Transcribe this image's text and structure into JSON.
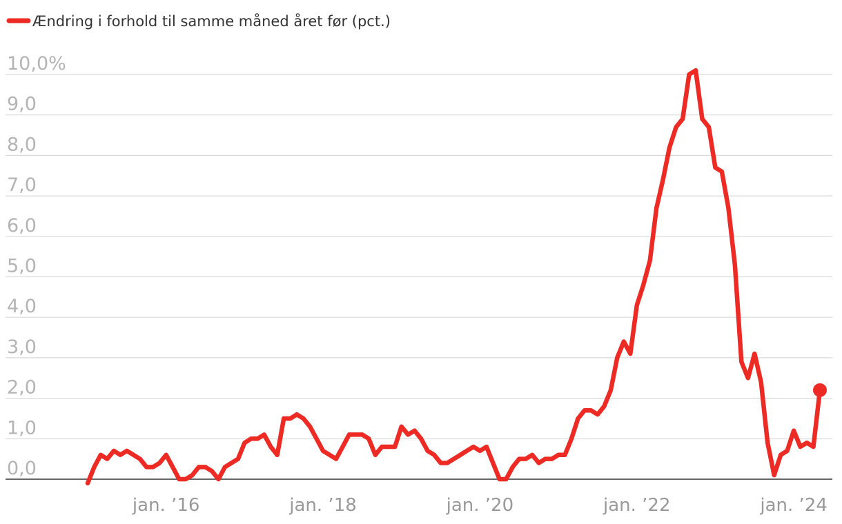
{
  "colors": {
    "series": "#ee2a24",
    "grid": "#d9d9d9",
    "axis": "#333333",
    "tick_text": "#999999",
    "legend_text": "#333333"
  },
  "chart_data": {
    "type": "line",
    "legend_position": "top-left",
    "grid": true,
    "series": [
      {
        "name": "Ændring i forhold til samme måned året før (pct.)",
        "marker_on_last_point": true,
        "points": [
          [
            "2015-01",
            -0.1
          ],
          [
            "2015-02",
            0.3
          ],
          [
            "2015-03",
            0.6
          ],
          [
            "2015-04",
            0.5
          ],
          [
            "2015-05",
            0.7
          ],
          [
            "2015-06",
            0.6
          ],
          [
            "2015-07",
            0.7
          ],
          [
            "2015-08",
            0.6
          ],
          [
            "2015-09",
            0.5
          ],
          [
            "2015-10",
            0.3
          ],
          [
            "2015-11",
            0.3
          ],
          [
            "2015-12",
            0.4
          ],
          [
            "2016-01",
            0.6
          ],
          [
            "2016-02",
            0.3
          ],
          [
            "2016-03",
            0.0
          ],
          [
            "2016-04",
            0.0
          ],
          [
            "2016-05",
            0.1
          ],
          [
            "2016-06",
            0.3
          ],
          [
            "2016-07",
            0.3
          ],
          [
            "2016-08",
            0.2
          ],
          [
            "2016-09",
            0.0
          ],
          [
            "2016-10",
            0.3
          ],
          [
            "2016-11",
            0.4
          ],
          [
            "2016-12",
            0.5
          ],
          [
            "2017-01",
            0.9
          ],
          [
            "2017-02",
            1.0
          ],
          [
            "2017-03",
            1.0
          ],
          [
            "2017-04",
            1.1
          ],
          [
            "2017-05",
            0.8
          ],
          [
            "2017-06",
            0.6
          ],
          [
            "2017-07",
            1.5
          ],
          [
            "2017-08",
            1.5
          ],
          [
            "2017-09",
            1.6
          ],
          [
            "2017-10",
            1.5
          ],
          [
            "2017-11",
            1.3
          ],
          [
            "2017-12",
            1.0
          ],
          [
            "2018-01",
            0.7
          ],
          [
            "2018-02",
            0.6
          ],
          [
            "2018-03",
            0.5
          ],
          [
            "2018-04",
            0.8
          ],
          [
            "2018-05",
            1.1
          ],
          [
            "2018-06",
            1.1
          ],
          [
            "2018-07",
            1.1
          ],
          [
            "2018-08",
            1.0
          ],
          [
            "2018-09",
            0.6
          ],
          [
            "2018-10",
            0.8
          ],
          [
            "2018-11",
            0.8
          ],
          [
            "2018-12",
            0.8
          ],
          [
            "2019-01",
            1.3
          ],
          [
            "2019-02",
            1.1
          ],
          [
            "2019-03",
            1.2
          ],
          [
            "2019-04",
            1.0
          ],
          [
            "2019-05",
            0.7
          ],
          [
            "2019-06",
            0.6
          ],
          [
            "2019-07",
            0.4
          ],
          [
            "2019-08",
            0.4
          ],
          [
            "2019-09",
            0.5
          ],
          [
            "2019-10",
            0.6
          ],
          [
            "2019-11",
            0.7
          ],
          [
            "2019-12",
            0.8
          ],
          [
            "2020-01",
            0.7
          ],
          [
            "2020-02",
            0.8
          ],
          [
            "2020-03",
            0.4
          ],
          [
            "2020-04",
            0.0
          ],
          [
            "2020-05",
            0.0
          ],
          [
            "2020-06",
            0.3
          ],
          [
            "2020-07",
            0.5
          ],
          [
            "2020-08",
            0.5
          ],
          [
            "2020-09",
            0.6
          ],
          [
            "2020-10",
            0.4
          ],
          [
            "2020-11",
            0.5
          ],
          [
            "2020-12",
            0.5
          ],
          [
            "2021-01",
            0.6
          ],
          [
            "2021-02",
            0.6
          ],
          [
            "2021-03",
            1.0
          ],
          [
            "2021-04",
            1.5
          ],
          [
            "2021-05",
            1.7
          ],
          [
            "2021-06",
            1.7
          ],
          [
            "2021-07",
            1.6
          ],
          [
            "2021-08",
            1.8
          ],
          [
            "2021-09",
            2.2
          ],
          [
            "2021-10",
            3.0
          ],
          [
            "2021-11",
            3.4
          ],
          [
            "2021-12",
            3.1
          ],
          [
            "2022-01",
            4.3
          ],
          [
            "2022-02",
            4.8
          ],
          [
            "2022-03",
            5.4
          ],
          [
            "2022-04",
            6.7
          ],
          [
            "2022-05",
            7.4
          ],
          [
            "2022-06",
            8.2
          ],
          [
            "2022-07",
            8.7
          ],
          [
            "2022-08",
            8.9
          ],
          [
            "2022-09",
            10.0
          ],
          [
            "2022-10",
            10.1
          ],
          [
            "2022-11",
            8.9
          ],
          [
            "2022-12",
            8.7
          ],
          [
            "2023-01",
            7.7
          ],
          [
            "2023-02",
            7.6
          ],
          [
            "2023-03",
            6.7
          ],
          [
            "2023-04",
            5.3
          ],
          [
            "2023-05",
            2.9
          ],
          [
            "2023-06",
            2.5
          ],
          [
            "2023-07",
            3.1
          ],
          [
            "2023-08",
            2.4
          ],
          [
            "2023-09",
            0.9
          ],
          [
            "2023-10",
            0.1
          ],
          [
            "2023-11",
            0.6
          ],
          [
            "2023-12",
            0.7
          ],
          [
            "2024-01",
            1.2
          ],
          [
            "2024-02",
            0.8
          ],
          [
            "2024-03",
            0.9
          ],
          [
            "2024-04",
            0.8
          ],
          [
            "2024-05",
            2.2
          ]
        ]
      }
    ],
    "ylim": [
      0,
      10
    ],
    "yticks": [
      {
        "value": 10,
        "label": "10,0%"
      },
      {
        "value": 9,
        "label": "9,0"
      },
      {
        "value": 8,
        "label": "8,0"
      },
      {
        "value": 7,
        "label": "7,0"
      },
      {
        "value": 6,
        "label": "6,0"
      },
      {
        "value": 5,
        "label": "5,0"
      },
      {
        "value": 4,
        "label": "4,0"
      },
      {
        "value": 3,
        "label": "3,0"
      },
      {
        "value": 2,
        "label": "2,0"
      },
      {
        "value": 1,
        "label": "1,0"
      },
      {
        "value": 0,
        "label": "0,0"
      }
    ],
    "xrange": [
      "2015-01",
      "2024-05"
    ],
    "xticks": [
      {
        "date": "2016-01",
        "label": "jan. ’16"
      },
      {
        "date": "2018-01",
        "label": "jan. ’18"
      },
      {
        "date": "2020-01",
        "label": "jan. ’20"
      },
      {
        "date": "2022-01",
        "label": "jan. ’22"
      },
      {
        "date": "2024-01",
        "label": "jan. ’24"
      }
    ]
  }
}
